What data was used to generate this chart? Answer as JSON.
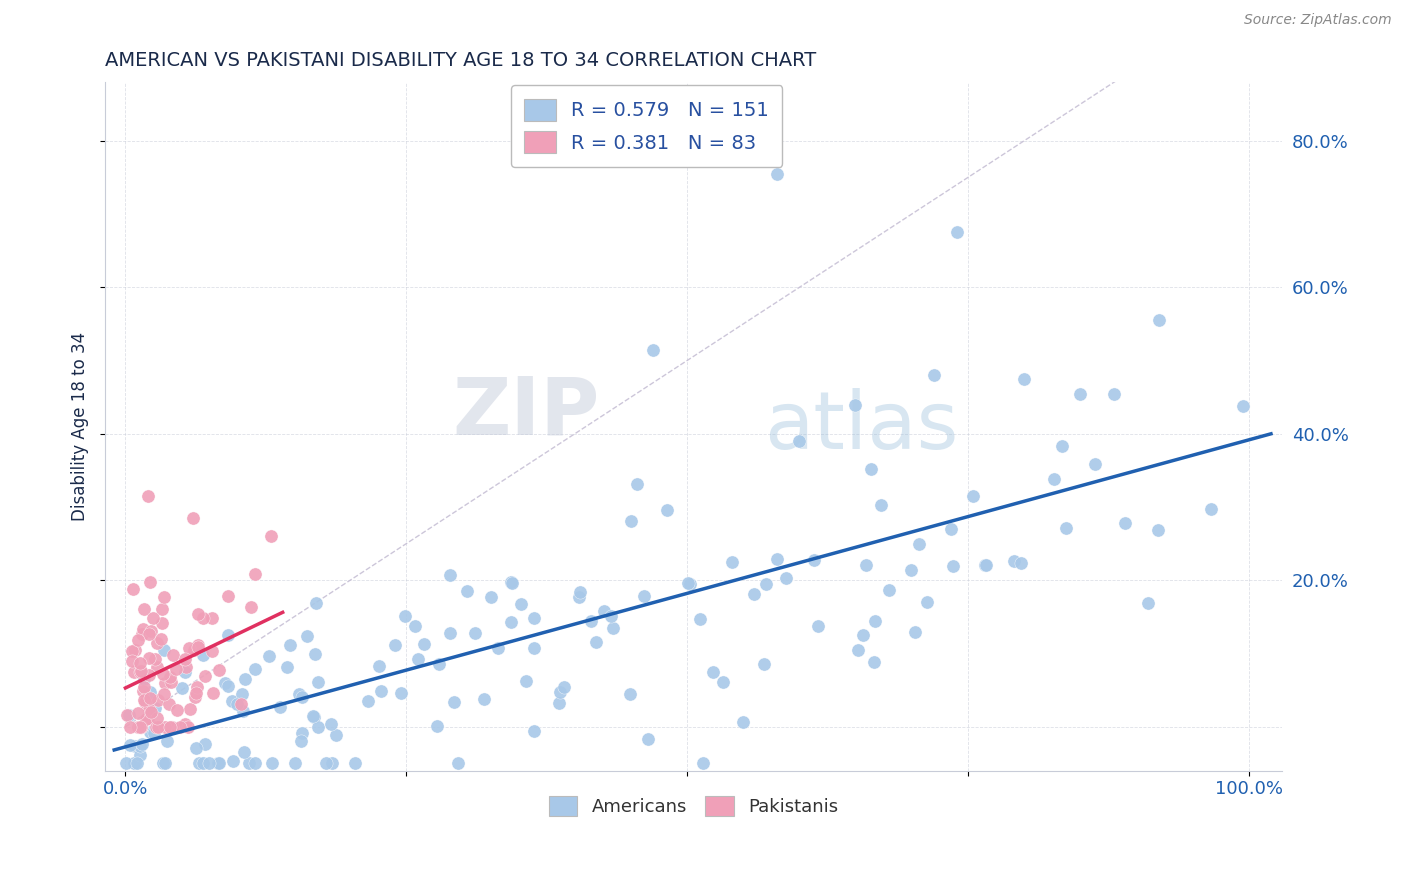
{
  "title": "AMERICAN VS PAKISTANI DISABILITY AGE 18 TO 34 CORRELATION CHART",
  "source": "Source: ZipAtlas.com",
  "ylabel": "Disability Age 18 to 34",
  "american_R": 0.579,
  "american_N": 151,
  "pakistani_R": 0.381,
  "pakistani_N": 83,
  "american_color": "#a8c8e8",
  "american_line_color": "#2060b0",
  "pakistani_color": "#f0a0b8",
  "pakistani_line_color": "#e03060",
  "diagonal_color": "#c0b8d0",
  "watermark_zip": "ZIP",
  "watermark_atlas": "atlas",
  "legend_color": "#2850a0",
  "title_color": "#1a2a4a",
  "axis_label_color": "#2060b0",
  "tick_label_color": "#2060b0",
  "source_color": "#888888"
}
